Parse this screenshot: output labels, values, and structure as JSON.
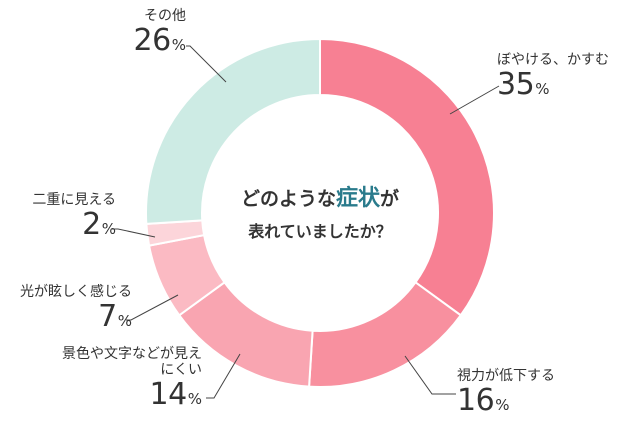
{
  "chart_data": {
    "type": "pie",
    "donut": true,
    "start": "top",
    "direction": "clockwise",
    "unit": "%",
    "slices": [
      {
        "label": "ぼやける、かすむ",
        "value": 35,
        "color": "#f78093"
      },
      {
        "label": "視力が低下する",
        "value": 16,
        "color": "#f8909f"
      },
      {
        "label": "景色や文字などが見えにくい",
        "value": 14,
        "color": "#f9a5b1"
      },
      {
        "label": "光が眩しく感じる",
        "value": 7,
        "color": "#fbbac3"
      },
      {
        "label": "二重に見える",
        "value": 2,
        "color": "#fcd5da"
      },
      {
        "label": "その他",
        "value": 26,
        "color": "#cdebe4"
      }
    ],
    "center_text": {
      "line1_pre": "どのような",
      "line1_highlight": "症状",
      "line1_post": "が",
      "line2": "表れていましたか？",
      "highlight_color": "#2a7b8c"
    }
  }
}
